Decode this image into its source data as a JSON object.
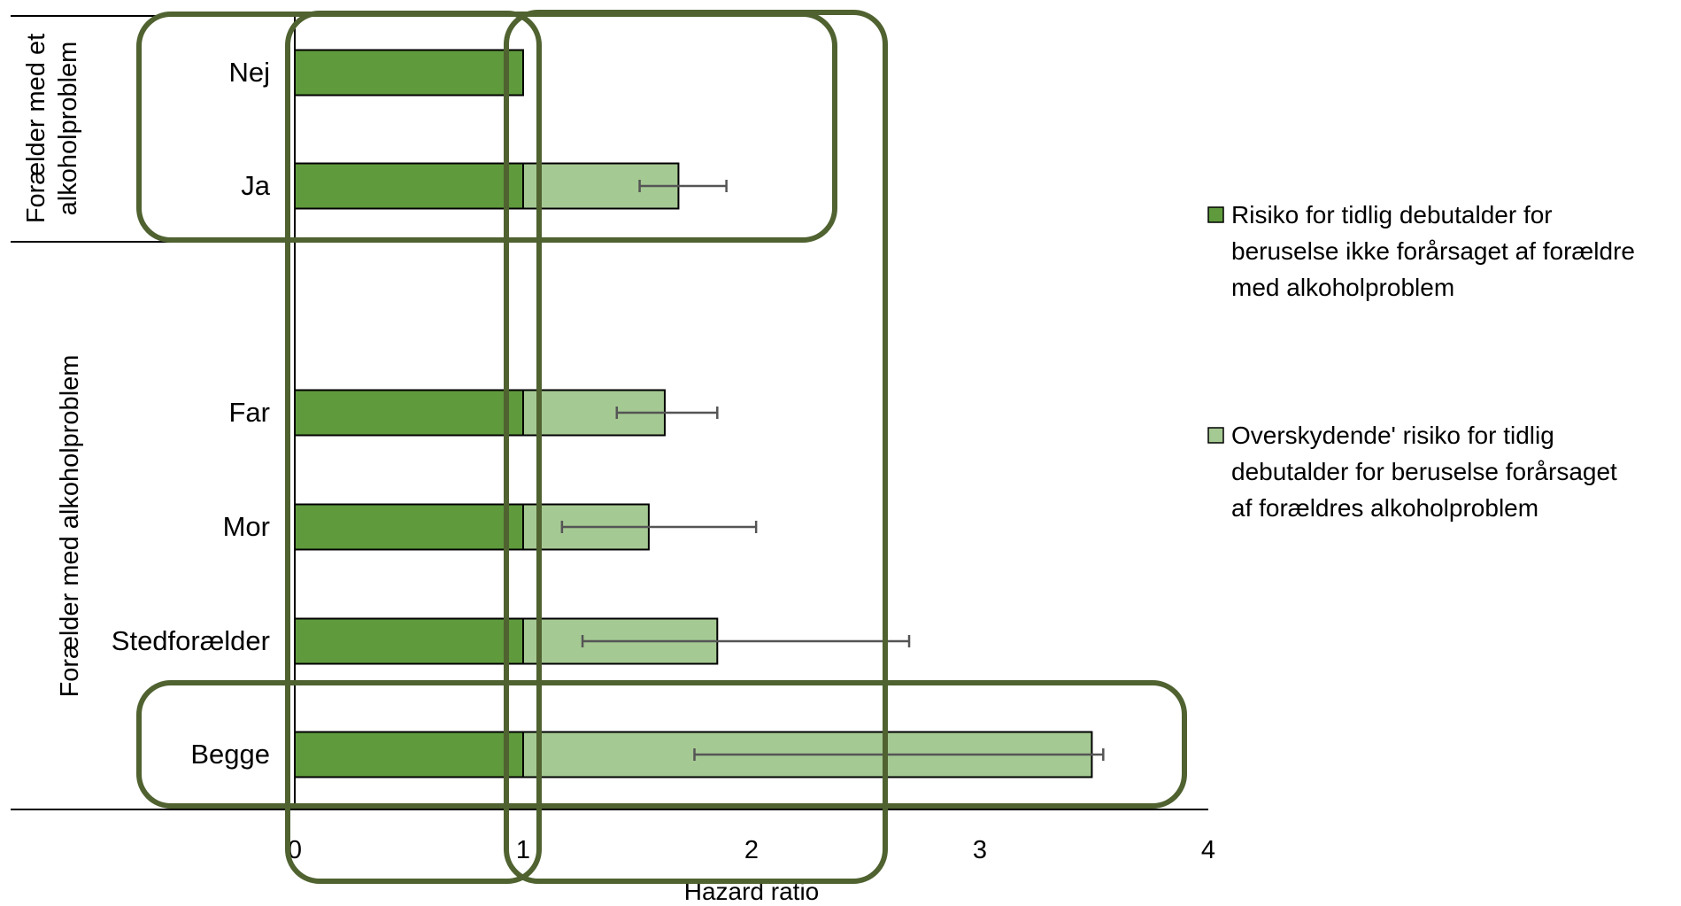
{
  "chart_data": {
    "type": "bar",
    "orientation": "horizontal",
    "stacked": true,
    "xlabel": "Hazard ratio",
    "xlim": [
      0,
      4
    ],
    "xticks": [
      "0",
      "1",
      "2",
      "3",
      "4"
    ],
    "categories": [
      "Nej",
      "Ja",
      "Far",
      "Mor",
      "Stedforælder",
      "Begge"
    ],
    "groups": [
      {
        "label": "Forælder med et alkoholproblem",
        "categories": [
          "Nej",
          "Ja"
        ]
      },
      {
        "label": "Forælder med alkoholproblem",
        "categories": [
          "Far",
          "Mor",
          "Stedforælder",
          "Begge"
        ]
      }
    ],
    "series": [
      {
        "name": "Risiko for tidlig debutalder for beruselse ikke forårsaget af forældre med alkoholproblem",
        "color": "#5f9a3d",
        "values": [
          1,
          1,
          1,
          1,
          1,
          1
        ]
      },
      {
        "name": "Overskydende' risiko for tidlig debutalder for beruselse forårsaget af forældres alkoholproblem",
        "color": "#a5c993",
        "values": [
          0,
          0.68,
          0.62,
          0.55,
          0.85,
          2.49
        ]
      }
    ],
    "error_bars": [
      null,
      [
        1.51,
        1.89
      ],
      [
        1.41,
        1.85
      ],
      [
        1.17,
        2.02
      ],
      [
        1.26,
        2.69
      ],
      [
        1.75,
        3.54
      ]
    ],
    "legend_position": "right",
    "grid": false,
    "annotation_color": "#4f6230",
    "legend_lines": [
      [
        "Risiko for tidlig debutalder for",
        "beruselse ikke forårsaget af forældre",
        "med alkoholproblem"
      ],
      [
        "Overskydende' risiko for tidlig",
        "debutalder for beruselse forårsaget",
        "af forældres alkoholproblem"
      ]
    ],
    "group_label_lines": [
      [
        "Forælder med et",
        "alkoholproblem"
      ],
      [
        "Forælder med alkoholproblem"
      ]
    ]
  }
}
